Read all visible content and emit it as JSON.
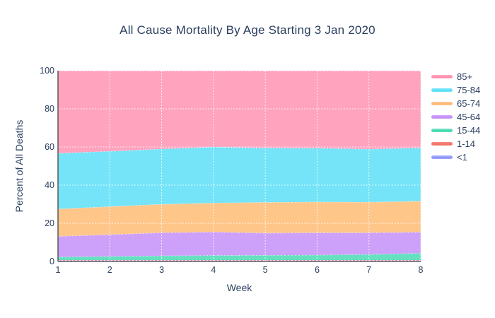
{
  "title": "All Cause Mortality By Age Starting 3 Jan 2020",
  "colors": {
    "text": "#2a3f5f",
    "axis_line": "#444444",
    "gridline": "rgba(255,255,255,0.8)",
    "background": "#ffffff"
  },
  "chart_data": {
    "type": "area",
    "stacked": true,
    "normalized_to_100": true,
    "title": "All Cause Mortality By Age Starting 3 Jan 2020",
    "xlabel": "Week",
    "ylabel": "Percent of All Deaths",
    "x": [
      1,
      2,
      3,
      4,
      5,
      6,
      7,
      8
    ],
    "x_ticks": [
      1,
      2,
      3,
      4,
      5,
      6,
      7,
      8
    ],
    "y_ticks": [
      0,
      20,
      40,
      60,
      80,
      100
    ],
    "xlim": [
      1,
      8
    ],
    "ylim": [
      0,
      100
    ],
    "grid": true,
    "legend_position": "right",
    "series": [
      {
        "name": "<1",
        "color": "#A1A8FC",
        "line_color": "#636EFA",
        "values": [
          0.5,
          0.5,
          0.5,
          0.5,
          0.5,
          0.5,
          0.5,
          0.5
        ]
      },
      {
        "name": "1-14",
        "color": "#F5857D",
        "line_color": "#EF553B",
        "values": [
          0.25,
          0.25,
          0.25,
          0.25,
          0.25,
          0.25,
          0.25,
          0.25
        ]
      },
      {
        "name": "15-44",
        "color": "#66E0C0",
        "line_color": "#00CC96",
        "values": [
          1.55,
          1.95,
          2.25,
          2.45,
          2.55,
          2.65,
          2.95,
          3.55
        ]
      },
      {
        "name": "45-64",
        "color": "#CDA1FA",
        "line_color": "#AB63FA",
        "values": [
          10.9,
          11.4,
          12.1,
          12.3,
          11.6,
          11.7,
          11.4,
          11.1
        ]
      },
      {
        "name": "65-74",
        "color": "#FFC68A",
        "line_color": "#FFA15A",
        "values": [
          14.3,
          14.7,
          14.9,
          15.2,
          16.1,
          16.1,
          16.0,
          16.2
        ]
      },
      {
        "name": "75-84",
        "color": "#75E4F8",
        "line_color": "#19D3F3",
        "values": [
          29.2,
          29.0,
          29.0,
          29.3,
          28.5,
          28.2,
          27.8,
          28.0
        ]
      },
      {
        "name": "85+",
        "color": "#FFA3BE",
        "line_color": "#FF6692",
        "values": [
          43.3,
          42.2,
          41.0,
          40.0,
          40.5,
          40.6,
          41.1,
          40.4
        ]
      }
    ],
    "legend_order": [
      "85+",
      "75-84",
      "65-74",
      "45-64",
      "15-44",
      "1-14",
      "<1"
    ]
  }
}
